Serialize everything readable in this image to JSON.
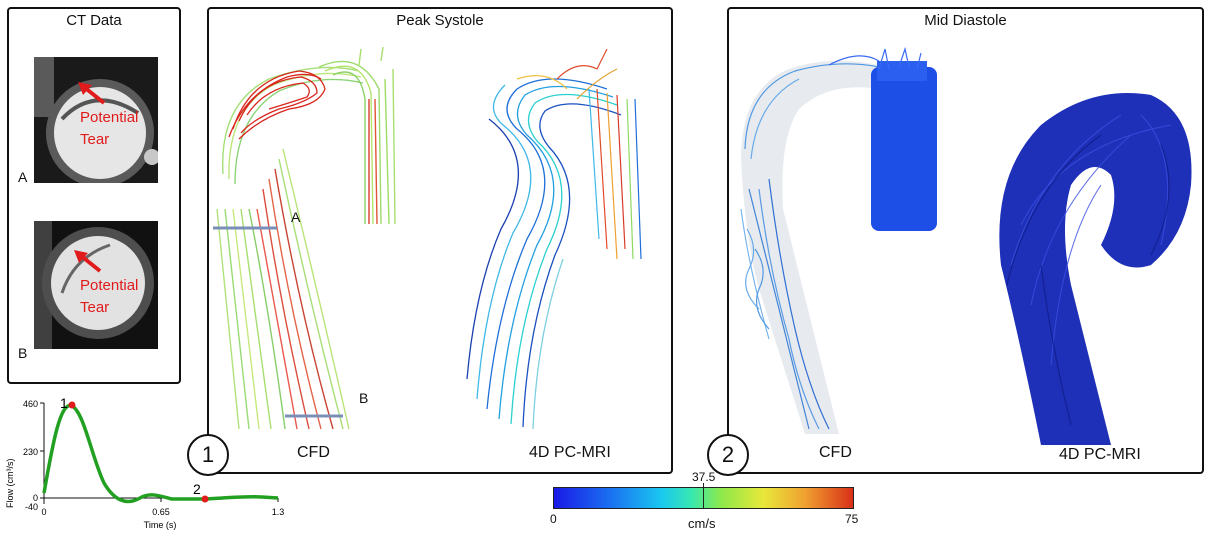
{
  "ct_panel": {
    "title": "CT Data",
    "image_a_label": "A",
    "image_b_label": "B",
    "annotation_line1": "Potential",
    "annotation_line2": "Tear"
  },
  "peak_panel": {
    "title": "Peak Systole",
    "number": "1",
    "left_label": "CFD",
    "right_label": "4D PC-MRI",
    "marker_a": "A",
    "marker_b": "B"
  },
  "mid_panel": {
    "title": "Mid Diastole",
    "number": "2",
    "left_label": "CFD",
    "right_label": "4D PC-MRI"
  },
  "flow_chart": {
    "ylabel": "Flow (cm³/s)",
    "xlabel": "Time (s)",
    "yticks": [
      "460",
      "230",
      "0",
      "-40"
    ],
    "xticks": [
      "0",
      "0.65",
      "1.3"
    ],
    "point1_label": "1",
    "point2_label": "2",
    "color": "#22a022"
  },
  "colorbar": {
    "min": "0",
    "mid": "37.5",
    "max": "75",
    "unit": "cm/s"
  }
}
